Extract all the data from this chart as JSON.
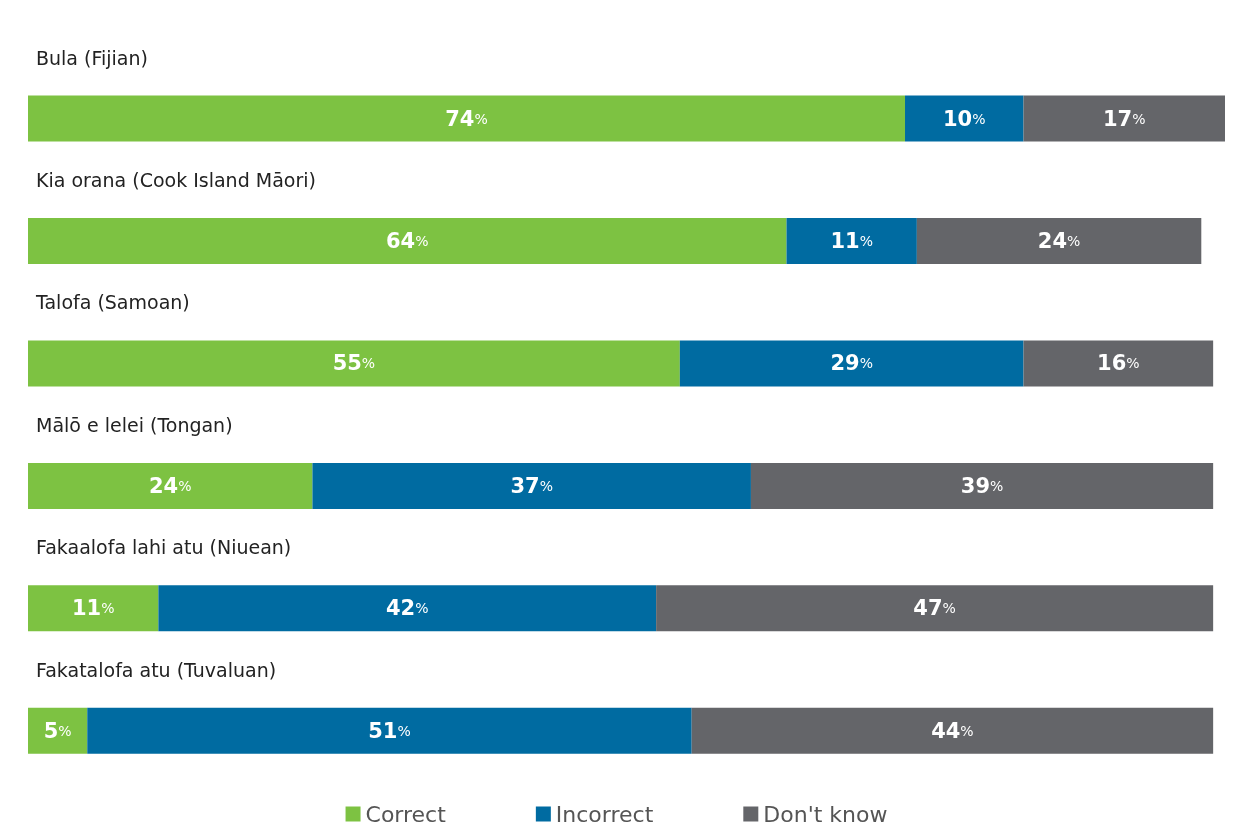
{
  "chart_data": {
    "type": "bar",
    "orientation": "horizontal",
    "stacked": true,
    "legend": "bottom",
    "tick_labels": "y",
    "categories": [
      "Bula (Fijian)",
      "Kia orana (Cook Island Māori)",
      "Talofa (Samoan)",
      "Mālō e lelei (Tongan)",
      "Fakaalofa lahi atu (Niuean)",
      "Fakatalofa atu (Tuvaluan)"
    ],
    "xlim": [
      0,
      101
    ],
    "series": [
      {
        "name": "Correct",
        "color": "#7dc242",
        "values": [
          74,
          64,
          55,
          24,
          11,
          5
        ],
        "value_labels": [
          "74%",
          "64%",
          "55%",
          "24%",
          "11%",
          "5%"
        ]
      },
      {
        "name": "Incorrect",
        "color": "#006ba1",
        "values": [
          10,
          11,
          29,
          37,
          42,
          51
        ],
        "value_labels": [
          "10%",
          "11%",
          "29%",
          "37%",
          "42%",
          "51%"
        ]
      },
      {
        "name": "Don't know",
        "color": "#646569",
        "values": [
          17,
          24,
          16,
          39,
          47,
          44
        ],
        "value_labels": [
          "17%",
          "24%",
          "16%",
          "39%",
          "47%",
          "44%"
        ]
      }
    ]
  }
}
